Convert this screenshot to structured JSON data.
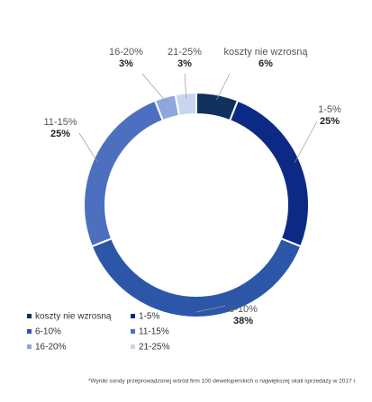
{
  "chart_data": {
    "type": "donut",
    "categories": [
      "koszty nie wzrosną",
      "1-5%",
      "6-10%",
      "11-15%",
      "16-20%",
      "21-25%"
    ],
    "values": [
      6,
      25,
      38,
      25,
      3,
      3
    ],
    "value_labels": [
      "6%",
      "25%",
      "38%",
      "25%",
      "3%",
      "3%"
    ],
    "colors": [
      "#10305e",
      "#0c2a85",
      "#2c57a8",
      "#4c70bf",
      "#8fa7de",
      "#c7d5ef"
    ],
    "footnote": "*Wyniki sondy przeprowadzonej wśród firm 100 deweloperskich o największej skali sprzedaży w 2017 r."
  }
}
